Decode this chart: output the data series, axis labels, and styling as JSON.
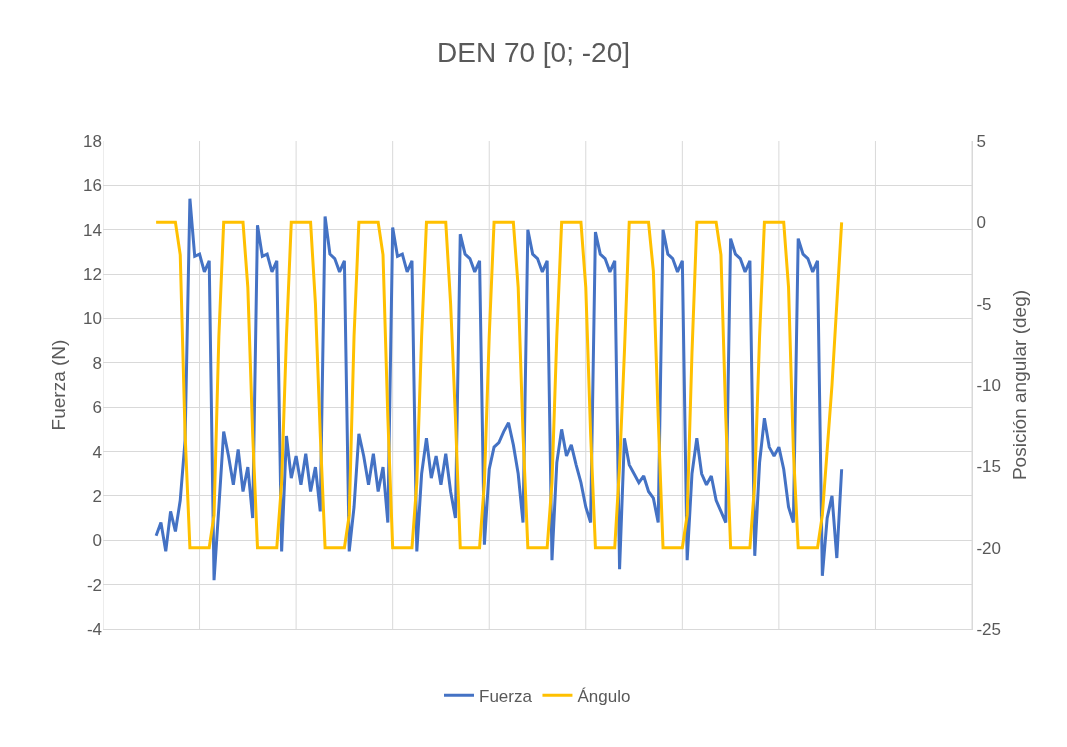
{
  "chart_data": {
    "type": "line",
    "title": "DEN 70 [0; -20]",
    "ylabel": "Fuerza (N)",
    "y2label": "Posición angular (deg)",
    "categories": [
      null,
      null,
      null,
      null,
      null,
      null,
      null,
      null,
      null,
      null,
      null,
      null,
      null,
      null,
      null,
      null,
      null,
      null,
      null,
      null,
      null,
      null,
      null,
      null,
      null,
      null,
      null,
      null,
      null,
      null,
      null,
      null,
      null,
      null,
      null,
      null,
      null,
      null,
      null,
      null,
      null,
      null,
      null,
      null,
      null,
      null,
      null,
      null,
      null,
      null,
      null,
      null,
      null,
      null,
      null,
      null,
      null,
      null,
      null,
      null,
      null,
      null,
      null,
      null,
      null,
      null,
      null,
      null,
      null,
      null,
      null,
      null,
      null,
      null,
      null,
      null,
      null,
      null,
      null,
      null,
      null,
      null,
      null,
      null,
      null,
      null,
      null,
      null,
      null,
      null,
      null,
      null,
      null,
      null,
      null,
      null,
      null,
      null,
      null,
      null,
      null,
      null,
      null,
      null,
      null,
      null,
      null,
      null,
      null,
      null,
      null,
      null,
      null,
      null,
      null,
      null,
      null,
      null,
      null,
      null,
      null,
      null,
      null,
      null,
      null,
      null,
      null,
      null,
      null,
      null,
      null,
      null,
      null,
      null,
      null,
      null,
      null,
      null,
      null,
      null,
      null,
      null,
      null,
      null,
      null,
      null,
      null,
      null,
      null,
      null,
      null,
      null,
      null,
      null,
      null,
      null,
      null,
      null,
      null,
      null,
      null,
      null,
      null,
      null,
      null,
      null,
      null,
      null,
      null,
      null,
      null,
      null,
      null,
      null,
      null,
      null,
      null,
      null,
      null,
      null,
      null
    ],
    "ylim": [
      -4,
      18
    ],
    "yticks": [
      -4,
      -2,
      0,
      2,
      4,
      6,
      8,
      10,
      12,
      14,
      16,
      18
    ],
    "y2lim": [
      -25,
      5
    ],
    "y2ticks": [
      -25,
      -20,
      -15,
      -10,
      -5,
      0,
      5
    ],
    "tick_labels": "y",
    "grid": true,
    "legend": "bottom",
    "marker": "none",
    "line_style": "solid",
    "series": [
      {
        "name": "Fuerza",
        "color": "#4472c4",
        "values": [
          null,
          null,
          null,
          null,
          null,
          null,
          null,
          null,
          null,
          null,
          null,
          0.2,
          0.8,
          -0.5,
          1.3,
          0.4,
          1.8,
          4.5,
          15.4,
          12.8,
          12.9,
          12.1,
          12.6,
          -1.8,
          1.5,
          4.9,
          3.8,
          2.5,
          4.1,
          2.2,
          3.3,
          1.0,
          14.2,
          12.8,
          12.9,
          12.1,
          12.6,
          -0.5,
          4.7,
          2.8,
          3.8,
          2.5,
          3.9,
          2.2,
          3.3,
          1.3,
          14.6,
          12.9,
          12.7,
          12.1,
          12.6,
          -0.5,
          1.5,
          4.8,
          3.8,
          2.5,
          3.9,
          2.2,
          3.3,
          0.8,
          14.1,
          12.8,
          12.9,
          12.1,
          12.6,
          -0.5,
          3.0,
          4.6,
          2.8,
          3.8,
          2.5,
          3.9,
          2.2,
          1.0,
          13.8,
          12.9,
          12.7,
          12.1,
          12.6,
          -0.2,
          3.2,
          4.2,
          4.4,
          4.9,
          5.3,
          4.3,
          3.0,
          0.8,
          14.0,
          12.9,
          12.7,
          12.1,
          12.6,
          -0.9,
          3.5,
          5.0,
          3.8,
          4.3,
          3.4,
          2.6,
          1.5,
          0.8,
          13.9,
          12.9,
          12.7,
          12.1,
          12.6,
          -1.3,
          4.6,
          3.4,
          3.0,
          2.6,
          2.9,
          2.2,
          1.9,
          0.8,
          14.0,
          12.9,
          12.7,
          12.1,
          12.6,
          -0.9,
          3.0,
          4.6,
          3.0,
          2.5,
          2.9,
          1.8,
          1.3,
          0.8,
          13.6,
          12.9,
          12.7,
          12.1,
          12.6,
          -0.7,
          3.5,
          5.5,
          4.2,
          3.8,
          4.2,
          3.2,
          1.5,
          0.8,
          13.6,
          12.9,
          12.7,
          12.1,
          12.6,
          -1.6,
          1.0,
          2.0,
          -0.8,
          3.2,
          null,
          null,
          null,
          null,
          null,
          null,
          null,
          null,
          null,
          null,
          null,
          null,
          null,
          null,
          null,
          null,
          null,
          null,
          null,
          null,
          null,
          null,
          null,
          null,
          null,
          null,
          null
        ]
      },
      {
        "name": "Ángulo",
        "color": "#ffc000",
        "axis": "y2",
        "values": [
          null,
          null,
          null,
          null,
          null,
          null,
          null,
          null,
          null,
          null,
          null,
          0,
          0,
          0,
          0,
          0,
          -2,
          -13,
          -20,
          -20,
          -20,
          -20,
          -20,
          -18,
          -7,
          0,
          0,
          0,
          0,
          0,
          -4,
          -13,
          -20,
          -20,
          -20,
          -20,
          -20,
          -16,
          -7,
          0,
          0,
          0,
          0,
          0,
          -5,
          -13,
          -20,
          -20,
          -20,
          -20,
          -20,
          -18,
          -7,
          0,
          0,
          0,
          0,
          0,
          -2,
          -12,
          -20,
          -20,
          -20,
          -20,
          -20,
          -16,
          -7,
          0,
          0,
          0,
          0,
          0,
          -5,
          -12,
          -20,
          -20,
          -20,
          -20,
          -20,
          -16,
          -7,
          0,
          0,
          0,
          0,
          0,
          -4,
          -13,
          -20,
          -20,
          -20,
          -20,
          -20,
          -16,
          -7,
          0,
          0,
          0,
          0,
          0,
          -4,
          -13,
          -20,
          -20,
          -20,
          -20,
          -20,
          -15,
          -8,
          0,
          0,
          0,
          0,
          0,
          -3,
          -12,
          -20,
          -20,
          -20,
          -20,
          -20,
          -18,
          -8,
          0,
          0,
          0,
          0,
          0,
          -2,
          -12,
          -20,
          -20,
          -20,
          -20,
          -20,
          -16,
          -7,
          0,
          0,
          0,
          0,
          0,
          -4,
          -14,
          -20,
          -20,
          -20,
          -20,
          -20,
          -18,
          -14,
          -10,
          -5,
          0,
          null,
          null,
          null,
          null,
          null,
          null,
          null,
          null,
          null,
          null,
          null,
          null,
          null,
          null,
          null,
          null,
          null,
          null,
          null,
          null,
          null,
          null,
          null,
          null,
          null,
          null,
          null
        ]
      }
    ]
  }
}
